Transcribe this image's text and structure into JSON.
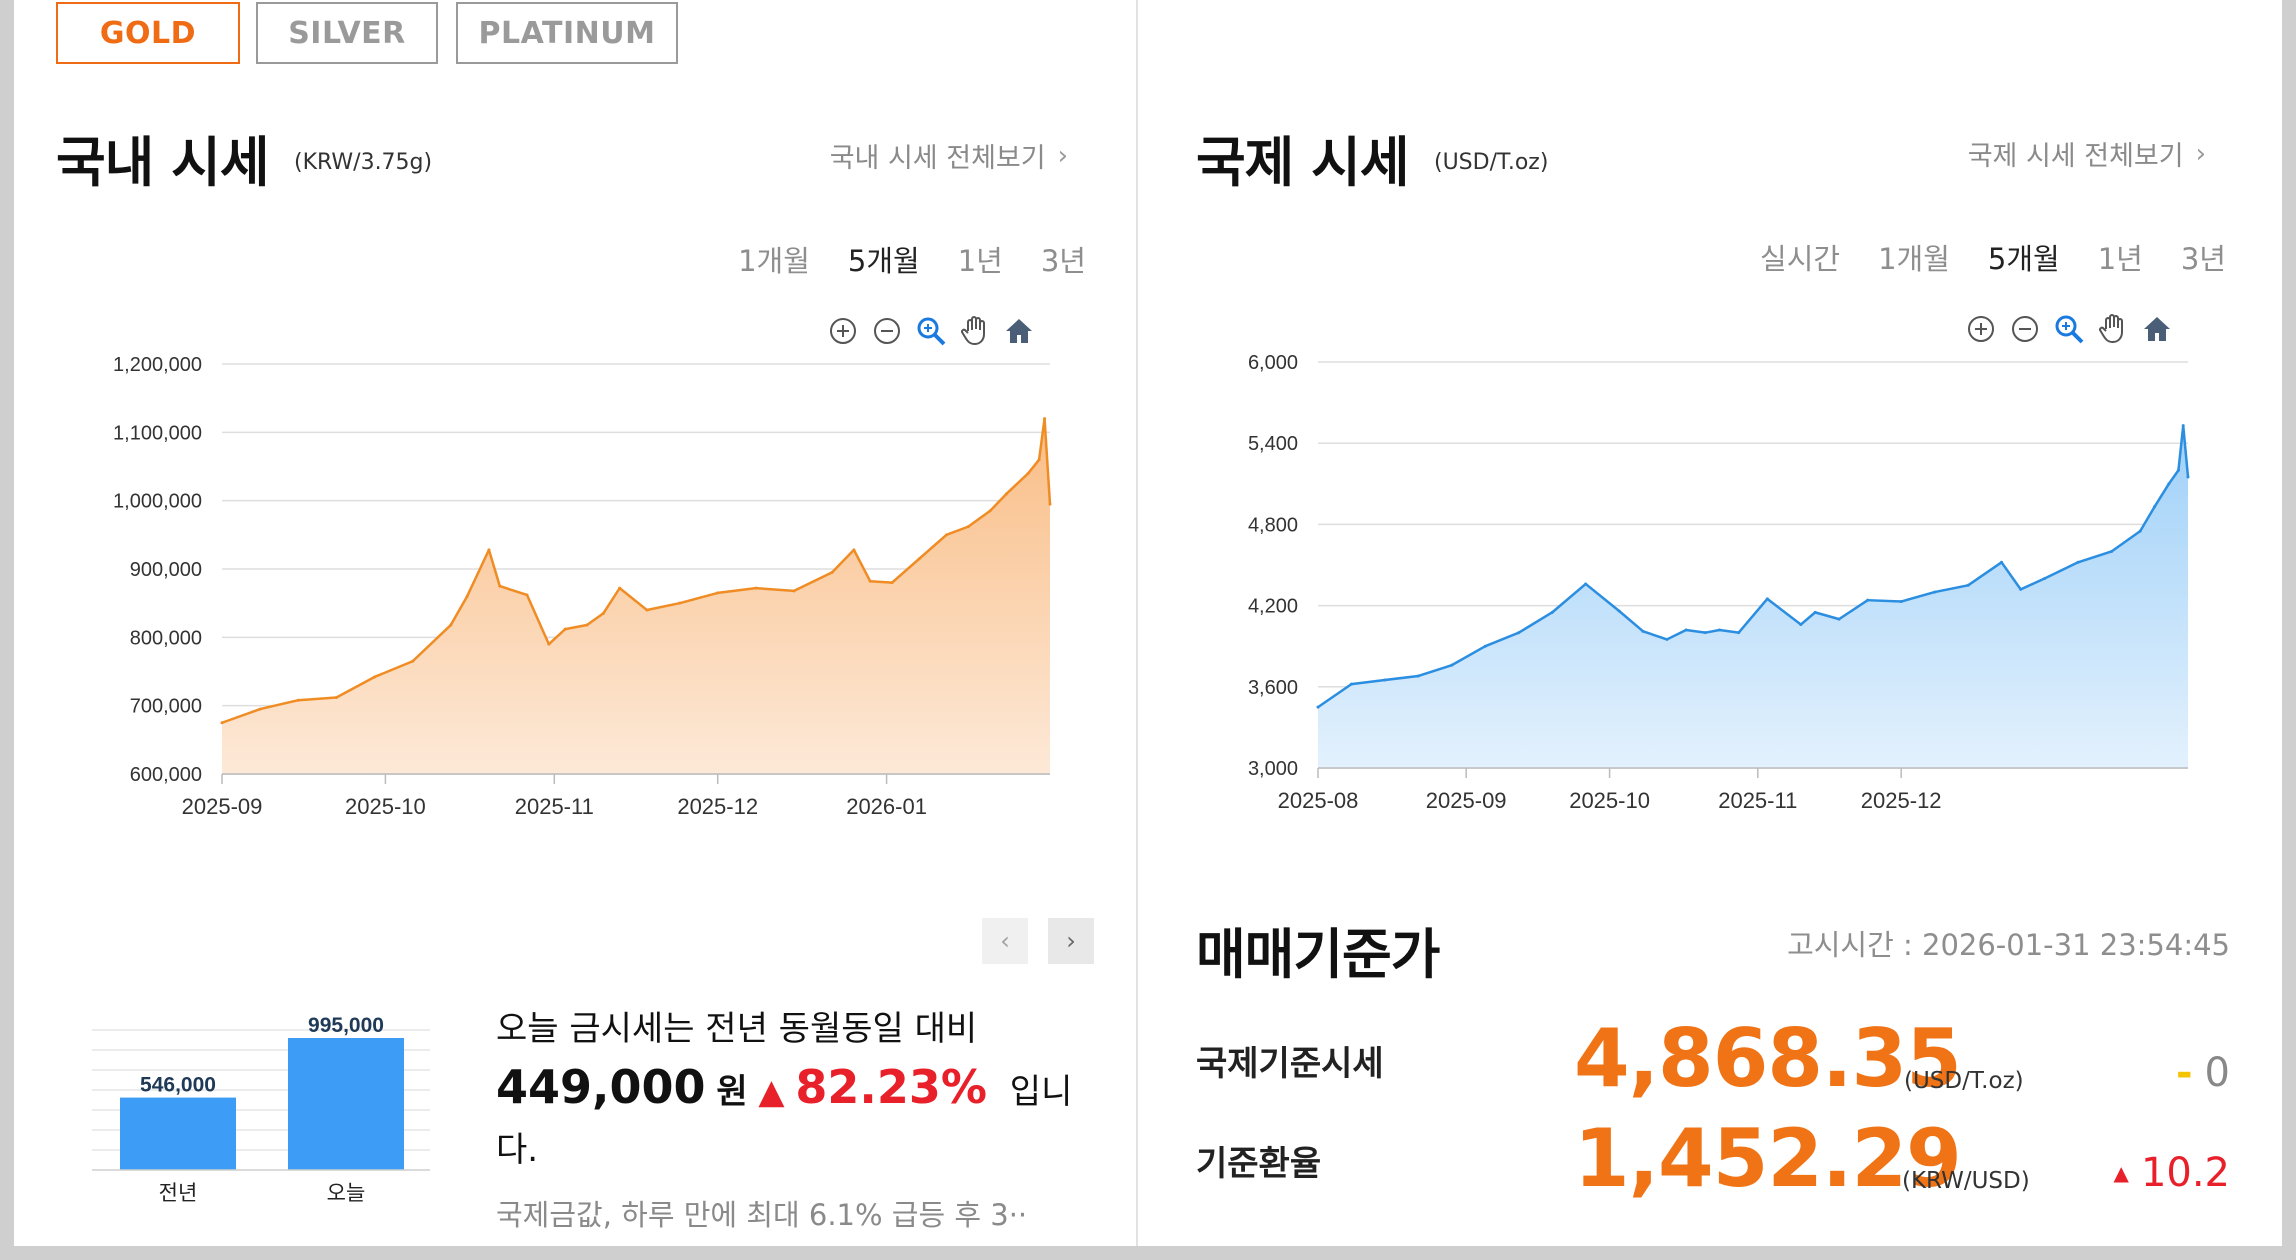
{
  "metal_tabs": [
    {
      "label": "GOLD",
      "active": true
    },
    {
      "label": "SILVER",
      "active": false
    },
    {
      "label": "PLATINUM",
      "active": false
    }
  ],
  "domestic": {
    "title": "국내 시세",
    "unit": "(KRW/3.75g)",
    "view_all": "국내 시세 전체보기",
    "periods": [
      "1개월",
      "5개월",
      "1년",
      "3년"
    ],
    "active_period": "5개월",
    "toolbar_icons": [
      "zoom-in-icon",
      "zoom-out-icon",
      "magnifier-icon",
      "pan-hand-icon",
      "home-icon"
    ]
  },
  "international": {
    "title": "국제 시세",
    "unit": "(USD/T.oz)",
    "view_all": "국제 시세 전체보기",
    "periods": [
      "실시간",
      "1개월",
      "5개월",
      "1년",
      "3년"
    ],
    "active_period": "5개월",
    "toolbar_icons": [
      "zoom-in-icon",
      "zoom-out-icon",
      "magnifier-icon",
      "pan-hand-icon",
      "home-icon"
    ]
  },
  "colors": {
    "accent": "#f06c14",
    "domestic_line": "#f08c24",
    "international_line": "#2b8ee0",
    "bar": "#3d9cf5",
    "up": "#e8202a",
    "flat": "#f4c400"
  },
  "chart_data": [
    {
      "type": "area",
      "ylim": [
        600000,
        1200000
      ],
      "yticks": [
        "600,000",
        "700,000",
        "800,000",
        "900,000",
        "1,000,000",
        "1,100,000",
        "1,200,000"
      ],
      "ytick_values": [
        600000,
        700000,
        800000,
        900000,
        1000000,
        1100000,
        1200000
      ],
      "xticks": [
        "2025-09",
        "2025-10",
        "2025-11",
        "2025-12",
        "2026-01"
      ],
      "x": [
        "2025-09-01",
        "2025-09-08",
        "2025-09-15",
        "2025-09-22",
        "2025-09-29",
        "2025-10-06",
        "2025-10-13",
        "2025-10-16",
        "2025-10-20",
        "2025-10-22",
        "2025-10-27",
        "2025-10-31",
        "2025-11-03",
        "2025-11-07",
        "2025-11-10",
        "2025-11-13",
        "2025-11-18",
        "2025-11-24",
        "2025-12-01",
        "2025-12-08",
        "2025-12-15",
        "2025-12-22",
        "2025-12-26",
        "2025-12-29",
        "2026-01-02",
        "2026-01-07",
        "2026-01-12",
        "2026-01-16",
        "2026-01-20",
        "2026-01-23",
        "2026-01-27",
        "2026-01-29",
        "2026-01-30",
        "2026-01-31"
      ],
      "values": [
        675000,
        695000,
        708000,
        712000,
        742000,
        765000,
        818000,
        860000,
        928000,
        875000,
        862000,
        790000,
        812000,
        818000,
        835000,
        872000,
        840000,
        850000,
        865000,
        872000,
        868000,
        895000,
        928000,
        882000,
        880000,
        915000,
        950000,
        962000,
        985000,
        1010000,
        1040000,
        1060000,
        1120000,
        995000
      ]
    },
    {
      "type": "area",
      "ylim": [
        3000,
        6000
      ],
      "yticks": [
        "3,000",
        "3,600",
        "4,200",
        "4,800",
        "5,400",
        "6,000"
      ],
      "ytick_values": [
        3000,
        3600,
        4200,
        4800,
        5400,
        6000
      ],
      "xticks": [
        "2025-08",
        "2025-09",
        "2025-10",
        "2025-11",
        "2025-12"
      ],
      "x": [
        "2025-08-01",
        "2025-08-08",
        "2025-08-15",
        "2025-08-22",
        "2025-08-29",
        "2025-09-05",
        "2025-09-12",
        "2025-09-19",
        "2025-09-26",
        "2025-10-03",
        "2025-10-08",
        "2025-10-13",
        "2025-10-17",
        "2025-10-21",
        "2025-10-24",
        "2025-10-28",
        "2025-11-03",
        "2025-11-10",
        "2025-11-13",
        "2025-11-18",
        "2025-11-24",
        "2025-12-01",
        "2025-12-08",
        "2025-12-15",
        "2025-12-22",
        "2025-12-26",
        "2025-12-31",
        "2026-01-07",
        "2026-01-14",
        "2026-01-20",
        "2026-01-23",
        "2026-01-26",
        "2026-01-28",
        "2026-01-29",
        "2026-01-30"
      ],
      "values": [
        3450,
        3620,
        3650,
        3680,
        3760,
        3900,
        4000,
        4150,
        4360,
        4160,
        4010,
        3950,
        4020,
        4000,
        4020,
        4000,
        4250,
        4060,
        4150,
        4100,
        4240,
        4230,
        4300,
        4350,
        4520,
        4320,
        4400,
        4520,
        4600,
        4750,
        4930,
        5100,
        5200,
        5530,
        5150
      ]
    },
    {
      "type": "bar",
      "categories": [
        "전년",
        "오늘"
      ],
      "values": [
        546000,
        995000
      ],
      "labels": [
        "546,000",
        "995,000"
      ]
    }
  ],
  "summary": {
    "line1": "오늘 금시세는 전년 동월동일 대비",
    "diff": "449,000",
    "won": "원",
    "arrow": "▲",
    "percent": "82.23%",
    "tail": "입니다.",
    "news": "국제금값, 하루 만에 최대 6.1% 급등 후 3··"
  },
  "base_price": {
    "title": "매매기준가",
    "notice": "고시시간 : 2026-01-31 23:54:45",
    "rows": [
      {
        "label": "국제기준시세",
        "value": "4,868.35",
        "unit": "(USD/T.oz)",
        "change_symbol": "-",
        "change": "0"
      },
      {
        "label": "기준환율",
        "value": "1,452.29",
        "unit": "(KRW/USD)",
        "change_symbol": "▲",
        "change": "10.2"
      }
    ]
  }
}
